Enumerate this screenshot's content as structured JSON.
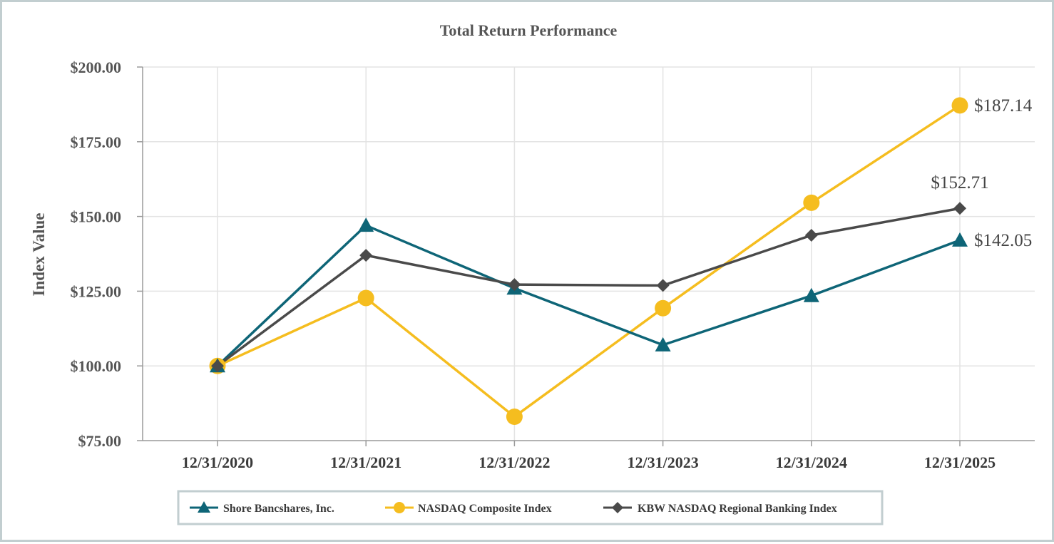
{
  "chart_data": {
    "type": "line",
    "title": "Total Return Performance",
    "ylabel": "Index Value",
    "xlabel": "",
    "categories": [
      "12/31/2020",
      "12/31/2021",
      "12/31/2022",
      "12/31/2023",
      "12/31/2024",
      "12/31/2025"
    ],
    "ylim": [
      75,
      200
    ],
    "yticks": [
      75,
      100,
      125,
      150,
      175,
      200
    ],
    "ytick_labels": [
      "$75.00",
      "$100.00",
      "$125.00",
      "$150.00",
      "$175.00",
      "$200.00"
    ],
    "grid": true,
    "legend_position": "bottom",
    "series": [
      {
        "name": "Shore Bancshares, Inc.",
        "color": "#0e6577",
        "marker": "triangle",
        "values": [
          100.0,
          147.0,
          126.0,
          107.0,
          123.5,
          142.05
        ],
        "end_label": "$142.05"
      },
      {
        "name": "NASDAQ Composite Index",
        "color": "#f5bd1f",
        "marker": "circle",
        "values": [
          100.0,
          122.7,
          83.0,
          119.3,
          154.6,
          187.14
        ],
        "end_label": "$187.14"
      },
      {
        "name": "KBW NASDAQ Regional Banking Index",
        "color": "#4a4a4a",
        "marker": "diamond",
        "values": [
          100.0,
          137.0,
          127.2,
          126.9,
          143.7,
          152.71
        ],
        "end_label": "$152.71"
      }
    ]
  }
}
